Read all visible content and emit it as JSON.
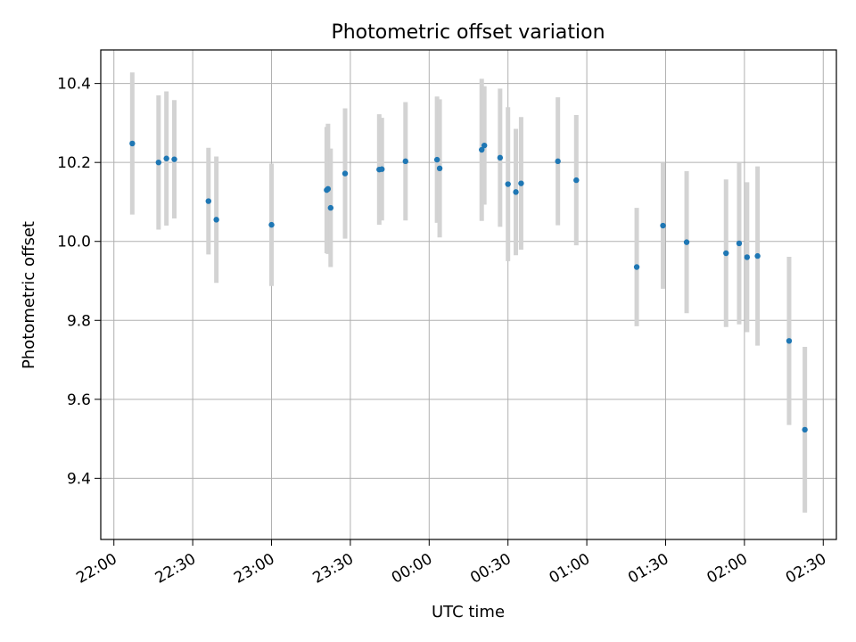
{
  "chart_data": {
    "type": "scatter",
    "title": "Photometric offset variation",
    "xlabel": "UTC time",
    "ylabel": "Photometric offset",
    "x_axis_type": "time",
    "x_range": [
      "21:55",
      "02:35"
    ],
    "xticks": [
      "22:00",
      "22:30",
      "23:00",
      "23:30",
      "00:00",
      "00:30",
      "01:00",
      "01:30",
      "02:00",
      "02:30"
    ],
    "ylim": [
      9.245,
      10.485
    ],
    "yticks": [
      9.4,
      9.6,
      9.8,
      10.0,
      10.2,
      10.4
    ],
    "grid": true,
    "colors": {
      "points": "#1f77b4",
      "errorbars": "#d3d3d3",
      "grid": "#b0b0b0"
    },
    "points": [
      {
        "time": "22:07",
        "y": 10.248,
        "err": 0.18
      },
      {
        "time": "22:17",
        "y": 10.2,
        "err": 0.17
      },
      {
        "time": "22:20",
        "y": 10.21,
        "err": 0.17
      },
      {
        "time": "22:23",
        "y": 10.208,
        "err": 0.15
      },
      {
        "time": "22:36",
        "y": 10.102,
        "err": 0.135
      },
      {
        "time": "22:39",
        "y": 10.055,
        "err": 0.16
      },
      {
        "time": "23:00",
        "y": 10.042,
        "err": 0.155
      },
      {
        "time": "23:21",
        "y": 10.13,
        "err": 0.16
      },
      {
        "time": "23:21.5",
        "y": 10.133,
        "err": 0.165
      },
      {
        "time": "23:22.5",
        "y": 10.085,
        "err": 0.15
      },
      {
        "time": "23:28",
        "y": 10.172,
        "err": 0.165
      },
      {
        "time": "23:41",
        "y": 10.182,
        "err": 0.14
      },
      {
        "time": "23:42",
        "y": 10.183,
        "err": 0.13
      },
      {
        "time": "23:51",
        "y": 10.203,
        "err": 0.15
      },
      {
        "time": "00:03",
        "y": 10.207,
        "err": 0.16
      },
      {
        "time": "00:04",
        "y": 10.185,
        "err": 0.175
      },
      {
        "time": "00:20",
        "y": 10.232,
        "err": 0.18
      },
      {
        "time": "00:21",
        "y": 10.243,
        "err": 0.15
      },
      {
        "time": "00:27",
        "y": 10.212,
        "err": 0.175
      },
      {
        "time": "00:30",
        "y": 10.145,
        "err": 0.195
      },
      {
        "time": "00:33",
        "y": 10.125,
        "err": 0.16
      },
      {
        "time": "00:35",
        "y": 10.147,
        "err": 0.168
      },
      {
        "time": "00:49",
        "y": 10.203,
        "err": 0.162
      },
      {
        "time": "00:56",
        "y": 10.155,
        "err": 0.165
      },
      {
        "time": "01:19",
        "y": 9.935,
        "err": 0.15
      },
      {
        "time": "01:29",
        "y": 10.04,
        "err": 0.16
      },
      {
        "time": "01:38",
        "y": 9.998,
        "err": 0.18
      },
      {
        "time": "01:53",
        "y": 9.97,
        "err": 0.187
      },
      {
        "time": "01:58",
        "y": 9.995,
        "err": 0.205
      },
      {
        "time": "02:01",
        "y": 9.96,
        "err": 0.19
      },
      {
        "time": "02:05",
        "y": 9.963,
        "err": 0.227
      },
      {
        "time": "02:17",
        "y": 9.748,
        "err": 0.213
      },
      {
        "time": "02:23",
        "y": 9.523,
        "err": 0.21
      }
    ]
  }
}
